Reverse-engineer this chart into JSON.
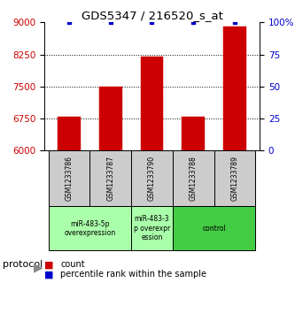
{
  "title": "GDS5347 / 216520_s_at",
  "samples": [
    "GSM1233786",
    "GSM1233787",
    "GSM1233790",
    "GSM1233788",
    "GSM1233789"
  ],
  "counts": [
    6800,
    7500,
    8200,
    6800,
    8900
  ],
  "percentiles": [
    100,
    100,
    100,
    100,
    100
  ],
  "ylim_left": [
    6000,
    9000
  ],
  "ylim_right": [
    0,
    100
  ],
  "yticks_left": [
    6000,
    6750,
    7500,
    8250,
    9000
  ],
  "yticks_right": [
    0,
    25,
    50,
    75,
    100
  ],
  "bar_color": "#cc0000",
  "dot_color": "#0000cc",
  "groups": [
    {
      "label": "miR-483-5p\noverexpression",
      "start": 0,
      "end": 1,
      "color": "#aaffaa"
    },
    {
      "label": "miR-483-3\np overexpr\nession",
      "start": 2,
      "end": 2,
      "color": "#aaffaa"
    },
    {
      "label": "control",
      "start": 3,
      "end": 4,
      "color": "#44cc44"
    }
  ],
  "protocol_label": "protocol",
  "legend_count_label": "count",
  "legend_pct_label": "percentile rank within the sample",
  "background_color": "#ffffff",
  "sample_box_color": "#cccccc"
}
